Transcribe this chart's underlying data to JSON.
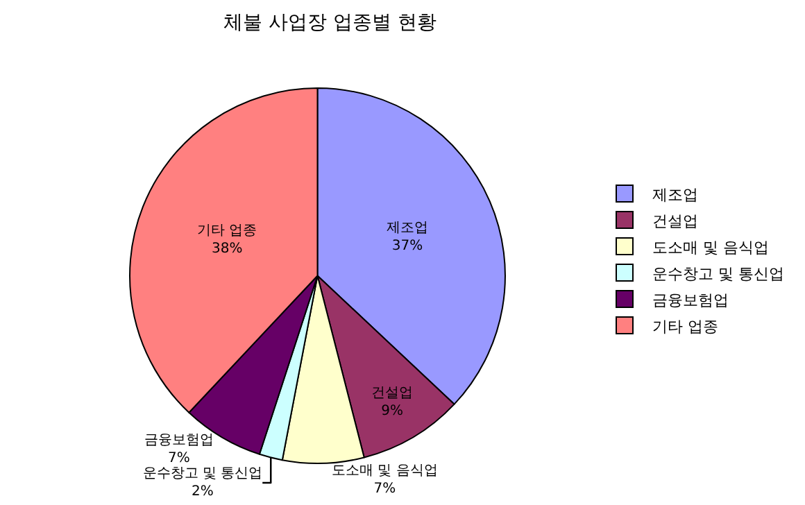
{
  "chart_data": {
    "type": "pie",
    "title": "체불 사업장 업종별 현황",
    "categories": [
      "제조업",
      "건설업",
      "도소매 및 음식업",
      "운수창고 및 통신업",
      "금융보험업",
      "기타 업종"
    ],
    "values": [
      37,
      9,
      7,
      2,
      7,
      38
    ],
    "colors": [
      "#9999ff",
      "#993366",
      "#ffffcc",
      "#ccffff",
      "#660066",
      "#ff8080"
    ],
    "value_labels": [
      "37%",
      "9%",
      "7%",
      "2%",
      "7%",
      "38%"
    ],
    "legend": "right"
  }
}
